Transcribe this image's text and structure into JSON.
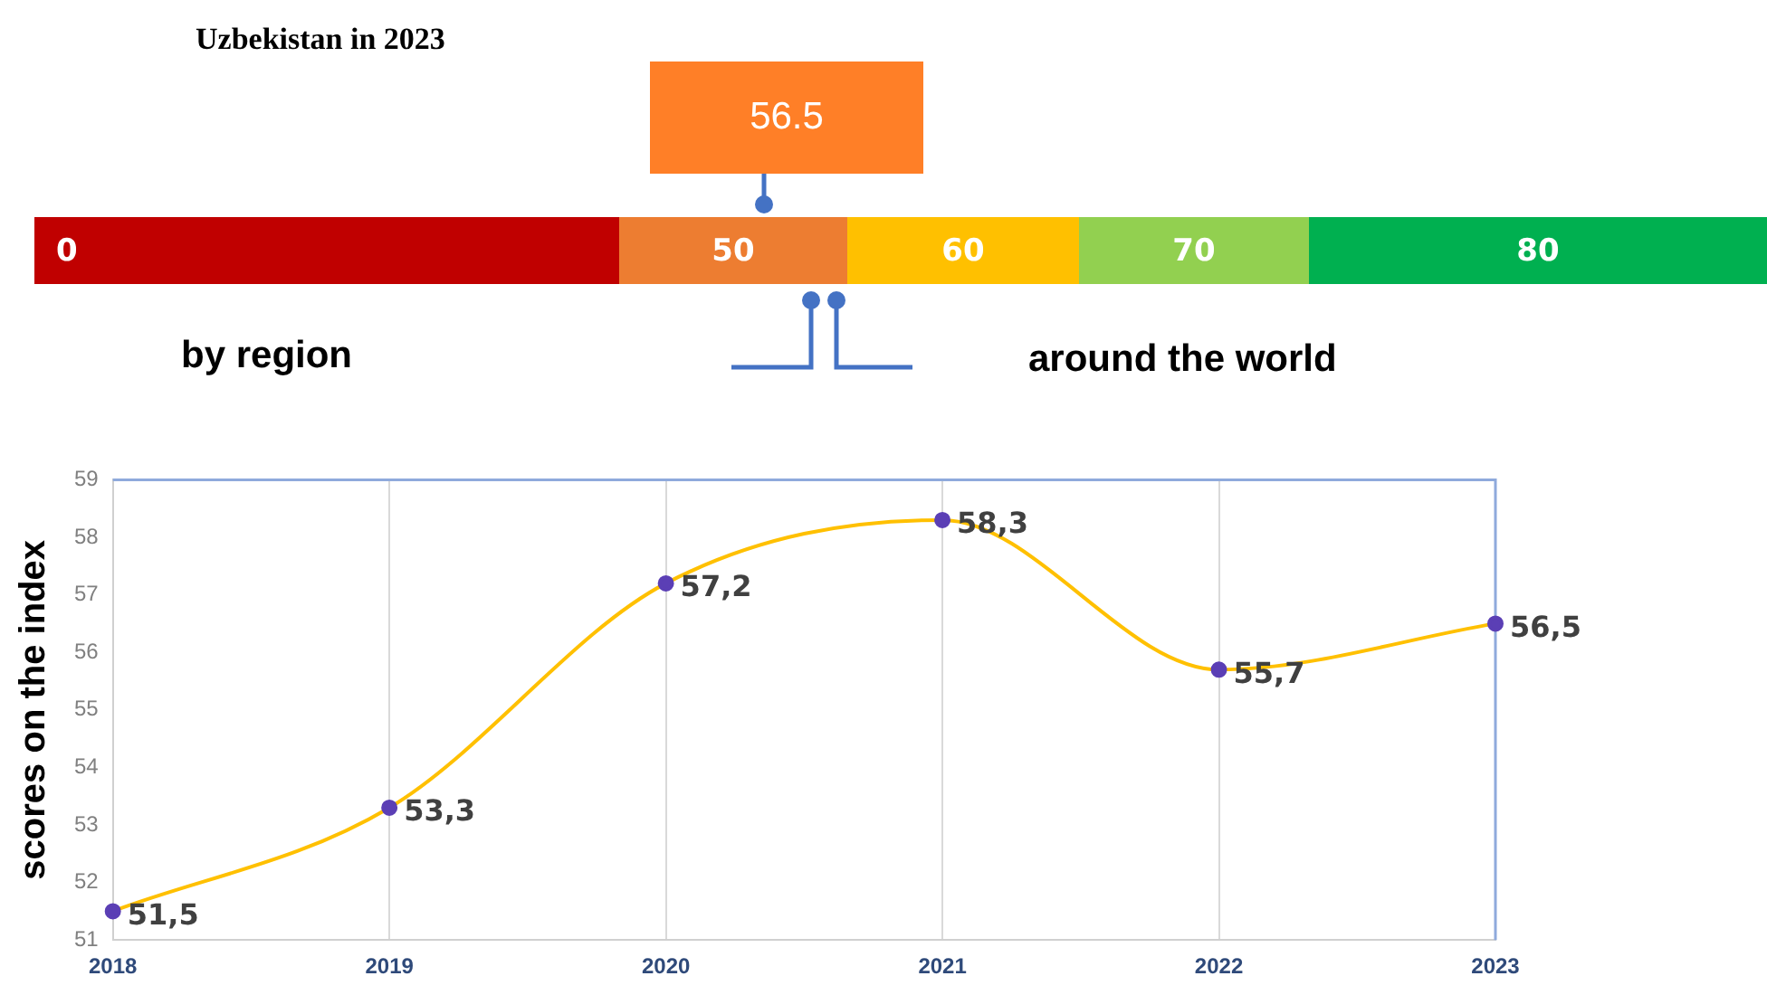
{
  "chart_data": [
    {
      "type": "other",
      "title": "Uzbekistan in 2023",
      "categories": [
        "0",
        "50",
        "60",
        "70",
        "80"
      ],
      "colors": [
        "#c00000",
        "#ed7d31",
        "#ffc000",
        "#92d050",
        "#00b050"
      ],
      "annotations": [
        {
          "text": "56.5",
          "x": "50"
        },
        "by region",
        "around the world"
      ]
    },
    {
      "type": "line",
      "categories": [
        "2018",
        "2019",
        "2020",
        "2021",
        "2022",
        "2023"
      ],
      "series": [
        {
          "color": "#ffc000",
          "values": [
            51.5,
            53.3,
            57.2,
            58.3,
            55.7,
            56.5
          ],
          "value_labels": [
            "51,5",
            "53,3",
            "57,2",
            "58,3",
            "55,7",
            "56,5"
          ]
        }
      ],
      "ylabel": "scores on the index",
      "ylim": [
        51,
        59
      ],
      "yticks": [
        51,
        52,
        53,
        54,
        55,
        56,
        57,
        58,
        59
      ],
      "grid": "x",
      "legend": false,
      "marker": "circle"
    }
  ]
}
